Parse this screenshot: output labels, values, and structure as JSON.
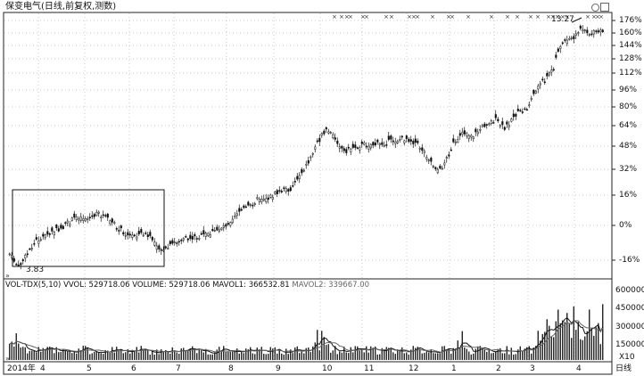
{
  "header": {
    "title": "保变电气(日线,前复权,测数)"
  },
  "price_panel": {
    "pct_ticks": [
      "176%",
      "160%",
      "144%",
      "128%",
      "112%",
      "96%",
      "80%",
      "64%",
      "48%",
      "32%",
      "16%",
      "0%",
      "-16%"
    ],
    "low_label": "3.83",
    "high_label": "13.27",
    "marker_glyph": "×"
  },
  "volume_panel": {
    "indicator_name": "VOL-TDX(5,10)",
    "vvol_label": "VVOL:",
    "vvol_value": "529718.06",
    "volume_label": "VOLUME:",
    "volume_value": "529718.06",
    "mavol1_label": "MAVOL1:",
    "mavol1_value": "366532.81",
    "mavol2_label": "MAVOL2:",
    "mavol2_value": "339667.00",
    "ticks": [
      "600000",
      "450000",
      "300000",
      "150000"
    ],
    "unit": "X10"
  },
  "time_axis": {
    "labels": [
      "2014年",
      "4",
      "5",
      "6",
      "7",
      "8",
      "9",
      "10",
      "11",
      "12",
      "1",
      "2",
      "3",
      "4"
    ],
    "period_label": "日线"
  },
  "chart_data": {
    "type": "candlestick",
    "title": "保变电气(日线,前复权,测数)",
    "y_axis": "percent change",
    "ylim_pct": [
      -20,
      180
    ],
    "start_price": 3.83,
    "low": 3.83,
    "high": 13.27,
    "months": [
      "2014年",
      "4",
      "5",
      "6",
      "7",
      "8",
      "9",
      "10",
      "11",
      "12",
      "1",
      "2",
      "3",
      "4"
    ],
    "volume": {
      "series": [
        "VOLUME",
        "MAVOL1",
        "MAVOL2"
      ],
      "latest": {
        "VOLUME": 529718.06,
        "MAVOL1": 366532.81,
        "MAVOL2": 339667.0
      },
      "ylim": [
        0,
        600000
      ]
    },
    "colors": {
      "candle": "#111111",
      "box": "#111111",
      "volume_ma1": "#111111",
      "volume_ma2": "#555555"
    }
  }
}
